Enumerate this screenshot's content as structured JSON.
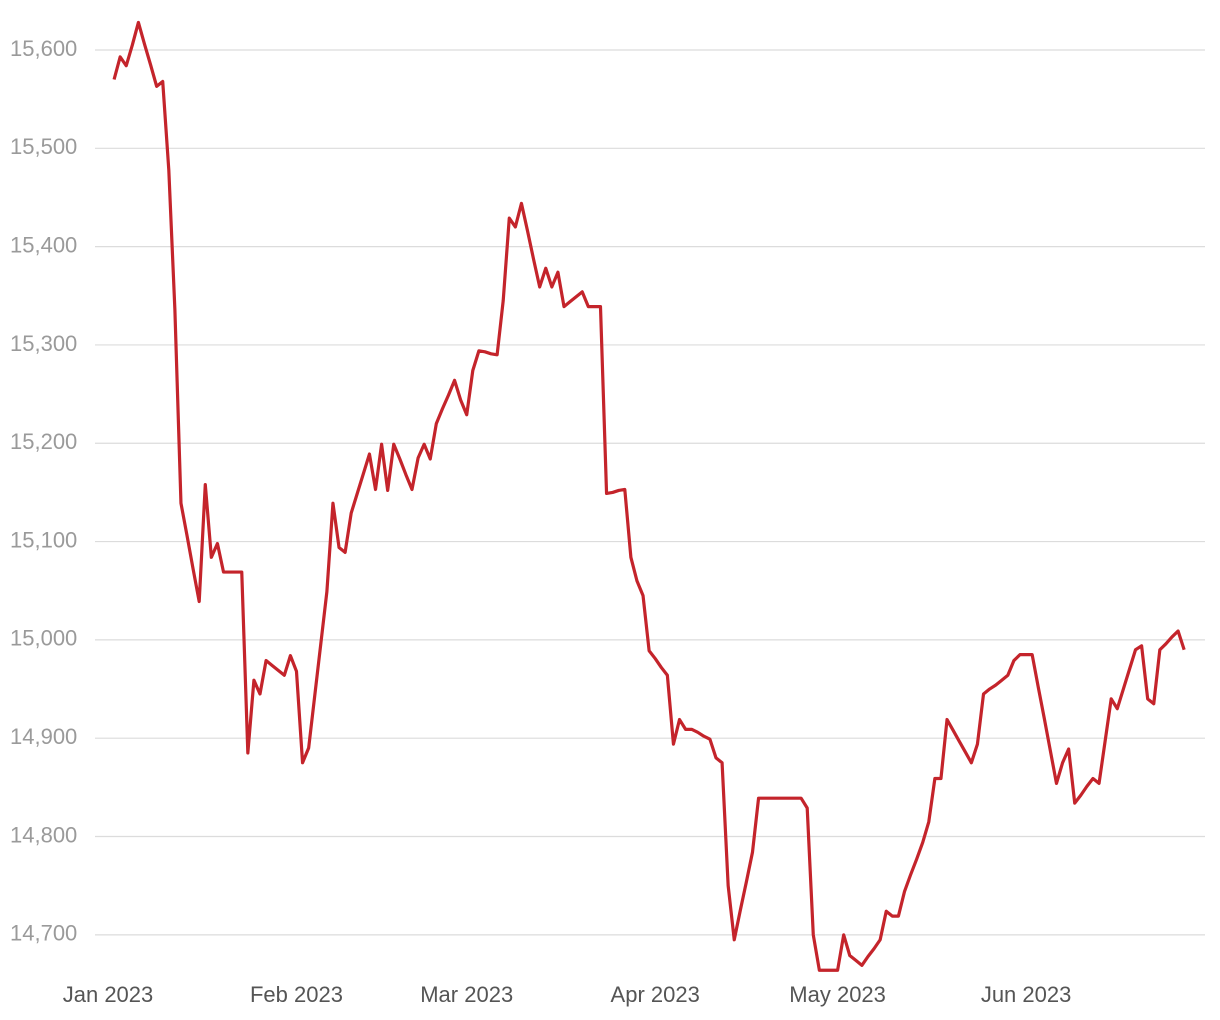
{
  "chart_data": {
    "type": "line",
    "categories": [
      "Jan 2023",
      null,
      null,
      null,
      null,
      null,
      null,
      null,
      null,
      null,
      null,
      null,
      null,
      null,
      null,
      null,
      null,
      null,
      null,
      null,
      null,
      null,
      null,
      null,
      null,
      null,
      null,
      null,
      null,
      null,
      null,
      "Feb 2023",
      null,
      null,
      null,
      null,
      null,
      null,
      null,
      null,
      null,
      null,
      null,
      null,
      null,
      null,
      null,
      null,
      null,
      null,
      null,
      null,
      null,
      null,
      null,
      null,
      null,
      null,
      null,
      "Mar 2023",
      null,
      null,
      null,
      null,
      null,
      null,
      null,
      null,
      null,
      null,
      null,
      null,
      null,
      null,
      null,
      null,
      null,
      null,
      null,
      null,
      null,
      null,
      null,
      null,
      null,
      null,
      null,
      null,
      null,
      null,
      "Apr 2023",
      null,
      null,
      null,
      null,
      null,
      null,
      null,
      null,
      null,
      null,
      null,
      null,
      null,
      null,
      null,
      null,
      null,
      null,
      null,
      null,
      null,
      null,
      null,
      null,
      null,
      null,
      null,
      null,
      null,
      "May 2023",
      null,
      null,
      null,
      null,
      null,
      null,
      null,
      null,
      null,
      null,
      null,
      null,
      null,
      null,
      null,
      null,
      null,
      null,
      null,
      null,
      null,
      null,
      null,
      null,
      null,
      null,
      null,
      null,
      null,
      null,
      "Jun 2023",
      null,
      null,
      null,
      null,
      null,
      null,
      null,
      null,
      null,
      null,
      null,
      null,
      null,
      null,
      null,
      null,
      null,
      null,
      null,
      null,
      null,
      null,
      null,
      null,
      null,
      null
    ],
    "values": [
      null,
      15570,
      15593,
      15584,
      15605,
      15628,
      15606,
      15585,
      15563,
      15568,
      15478,
      15336,
      15139,
      15106,
      15072,
      15039,
      15158,
      15084,
      15098,
      15069,
      15069,
      15069,
      15069,
      14885,
      14959,
      14945,
      14979,
      14974,
      14969,
      14964,
      14984,
      14968,
      14875,
      14890,
      14943,
      14996,
      15049,
      15139,
      15094,
      15089,
      15129,
      15149,
      15169,
      15189,
      15153,
      15199,
      15152,
      15199,
      15184,
      15168,
      15153,
      15185,
      15199,
      15184,
      15220,
      15235,
      15249,
      15264,
      15244,
      15229,
      15274,
      15294,
      15293,
      15291,
      15290,
      15345,
      15429,
      15420,
      15444,
      15416,
      15387,
      15359,
      15378,
      15359,
      15374,
      15339,
      15344,
      15349,
      15354,
      15339,
      15339,
      15339,
      15149,
      15150,
      15152,
      15153,
      15084,
      15060,
      15045,
      14989,
      14981,
      14972,
      14964,
      14894,
      14919,
      14909,
      14909,
      14906,
      14902,
      14899,
      14880,
      14875,
      14750,
      14695,
      14725,
      14754,
      14784,
      14839,
      14839,
      14839,
      14839,
      14839,
      14839,
      14839,
      14839,
      14829,
      14700,
      14664,
      14664,
      14664,
      14664,
      14700,
      14679,
      14674,
      14669,
      14678,
      14686,
      14695,
      14724,
      14719,
      14719,
      14744,
      14761,
      14777,
      14794,
      14815,
      14859,
      14859,
      14919,
      14908,
      14897,
      14886,
      14875,
      14894,
      14945,
      14950,
      14954,
      14959,
      14964,
      14979,
      14985,
      14985,
      14985,
      14952,
      14920,
      14887,
      14854,
      14875,
      14889,
      14834,
      14842,
      14851,
      14859,
      14854,
      14897,
      14940,
      14930,
      14950,
      14970,
      14990,
      14994,
      14940,
      14935,
      14990,
      14996,
      15003,
      15009,
      14990
    ],
    "color": "#c4242b",
    "ylim": [
      14650,
      15630
    ],
    "yticks": [
      {
        "value": 14700,
        "label": "14,700"
      },
      {
        "value": 14800,
        "label": "14,800"
      },
      {
        "value": 14900,
        "label": "14,900"
      },
      {
        "value": 15000,
        "label": "15,000"
      },
      {
        "value": 15100,
        "label": "15,100"
      },
      {
        "value": 15200,
        "label": "15,200"
      },
      {
        "value": 15300,
        "label": "15,300"
      },
      {
        "value": 15400,
        "label": "15,400"
      },
      {
        "value": 15500,
        "label": "15,500"
      },
      {
        "value": 15600,
        "label": "15,600"
      }
    ],
    "grid": true
  }
}
